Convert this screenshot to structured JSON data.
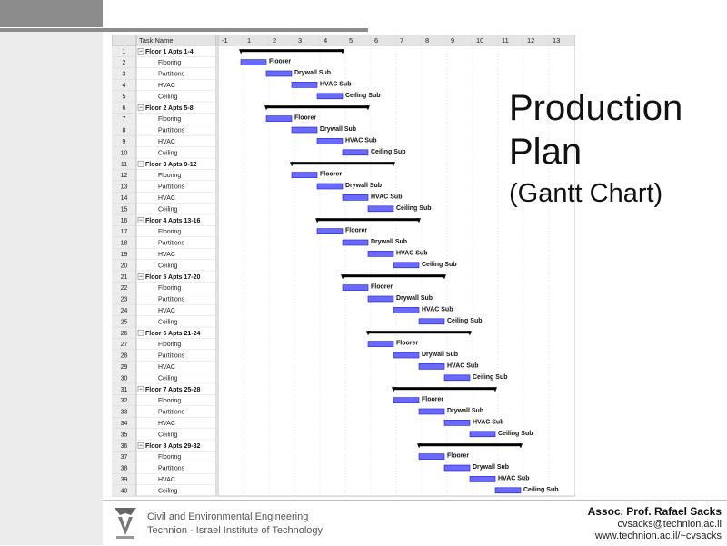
{
  "slide": {
    "title_line1": "Production",
    "title_line2": "Plan",
    "subtitle": "(Gantt Chart)"
  },
  "footer": {
    "dept_line1": "Civil and Environmental Engineering",
    "dept_line2": "Technion - Israel Institute of Technology",
    "author": "Assoc. Prof. Rafael Sacks",
    "email": "cvsacks@technion.ac.il",
    "website": "www.technion.ac.il/~cvsacks"
  },
  "colors": {
    "bar_fill": "#6a6aff",
    "bar_border": "#1a1ad0",
    "summary_bar": "#000000",
    "grid": "#c8c8c8"
  },
  "chart_data": {
    "type": "gantt",
    "column_header": "Task Name",
    "timescale": [
      "-1",
      "1",
      "2",
      "3",
      "4",
      "5",
      "6",
      "7",
      "8",
      "9",
      "10",
      "11",
      "12",
      "13"
    ],
    "floors": [
      {
        "id": "1",
        "name": "Floor 1 Apts 1-4",
        "start": 1,
        "finish": 5
      },
      {
        "id": "6",
        "name": "Floor 2 Apts 5-8",
        "start": 2,
        "finish": 6
      },
      {
        "id": "11",
        "name": "Floor 3 Apts 9-12",
        "start": 3,
        "finish": 7
      },
      {
        "id": "16",
        "name": "Floor 4 Apts 13-16",
        "start": 4,
        "finish": 8
      },
      {
        "id": "21",
        "name": "Floor 5 Apts 17-20",
        "start": 5,
        "finish": 9
      },
      {
        "id": "26",
        "name": "Floor 6 Apts 21-24",
        "start": 6,
        "finish": 10
      },
      {
        "id": "31",
        "name": "Floor 7 Apts 25-28",
        "start": 7,
        "finish": 11
      },
      {
        "id": "36",
        "name": "Floor 8 Apts 29-32",
        "start": 8,
        "finish": 12
      }
    ],
    "subtask_names": [
      "Flooring",
      "Partitions",
      "HVAC",
      "Ceiling"
    ],
    "resources": [
      "Floorer",
      "Drywall Sub",
      "HVAC Sub",
      "Ceiling Sub"
    ],
    "rows": [
      {
        "id": "2",
        "task": "Flooring",
        "resource": "Floorer",
        "start": 1,
        "finish": 2
      },
      {
        "id": "3",
        "task": "Partitions",
        "resource": "Drywall Sub",
        "start": 2,
        "finish": 3
      },
      {
        "id": "4",
        "task": "HVAC",
        "resource": "HVAC Sub",
        "start": 3,
        "finish": 4
      },
      {
        "id": "5",
        "task": "Ceiling",
        "resource": "Ceiling Sub",
        "start": 4,
        "finish": 5
      },
      {
        "id": "7",
        "task": "Flooring",
        "resource": "Floorer",
        "start": 2,
        "finish": 3
      },
      {
        "id": "8",
        "task": "Partitions",
        "resource": "Drywall Sub",
        "start": 3,
        "finish": 4
      },
      {
        "id": "9",
        "task": "HVAC",
        "resource": "HVAC Sub",
        "start": 4,
        "finish": 5
      },
      {
        "id": "10",
        "task": "Ceiling",
        "resource": "Ceiling Sub",
        "start": 5,
        "finish": 6
      },
      {
        "id": "12",
        "task": "Flooring",
        "resource": "Floorer",
        "start": 3,
        "finish": 4
      },
      {
        "id": "13",
        "task": "Partitions",
        "resource": "Drywall Sub",
        "start": 4,
        "finish": 5
      },
      {
        "id": "14",
        "task": "HVAC",
        "resource": "HVAC Sub",
        "start": 5,
        "finish": 6
      },
      {
        "id": "15",
        "task": "Ceiling",
        "resource": "Ceiling Sub",
        "start": 6,
        "finish": 7
      },
      {
        "id": "17",
        "task": "Flooring",
        "resource": "Floorer",
        "start": 4,
        "finish": 5
      },
      {
        "id": "18",
        "task": "Partitions",
        "resource": "Drywall Sub",
        "start": 5,
        "finish": 6
      },
      {
        "id": "19",
        "task": "HVAC",
        "resource": "HVAC Sub",
        "start": 6,
        "finish": 7
      },
      {
        "id": "20",
        "task": "Ceiling",
        "resource": "Ceiling Sub",
        "start": 7,
        "finish": 8
      },
      {
        "id": "22",
        "task": "Flooring",
        "resource": "Floorer",
        "start": 5,
        "finish": 6
      },
      {
        "id": "23",
        "task": "Partitions",
        "resource": "Drywall Sub",
        "start": 6,
        "finish": 7
      },
      {
        "id": "24",
        "task": "HVAC",
        "resource": "HVAC Sub",
        "start": 7,
        "finish": 8
      },
      {
        "id": "25",
        "task": "Ceiling",
        "resource": "Ceiling Sub",
        "start": 8,
        "finish": 9
      },
      {
        "id": "27",
        "task": "Flooring",
        "resource": "Floorer",
        "start": 6,
        "finish": 7
      },
      {
        "id": "28",
        "task": "Partitions",
        "resource": "Drywall Sub",
        "start": 7,
        "finish": 8
      },
      {
        "id": "29",
        "task": "HVAC",
        "resource": "HVAC Sub",
        "start": 8,
        "finish": 9
      },
      {
        "id": "30",
        "task": "Ceiling",
        "resource": "Ceiling Sub",
        "start": 9,
        "finish": 10
      },
      {
        "id": "32",
        "task": "Flooring",
        "resource": "Floorer",
        "start": 7,
        "finish": 8
      },
      {
        "id": "33",
        "task": "Partitions",
        "resource": "Drywall Sub",
        "start": 8,
        "finish": 9
      },
      {
        "id": "34",
        "task": "HVAC",
        "resource": "HVAC Sub",
        "start": 9,
        "finish": 10
      },
      {
        "id": "35",
        "task": "Ceiling",
        "resource": "Ceiling Sub",
        "start": 10,
        "finish": 11
      },
      {
        "id": "37",
        "task": "Flooring",
        "resource": "Floorer",
        "start": 8,
        "finish": 9
      },
      {
        "id": "38",
        "task": "Partitions",
        "resource": "Drywall Sub",
        "start": 9,
        "finish": 10
      },
      {
        "id": "39",
        "task": "HVAC",
        "resource": "HVAC Sub",
        "start": 10,
        "finish": 11
      },
      {
        "id": "40",
        "task": "Ceiling",
        "resource": "Ceiling Sub",
        "start": 11,
        "finish": 12
      }
    ]
  }
}
